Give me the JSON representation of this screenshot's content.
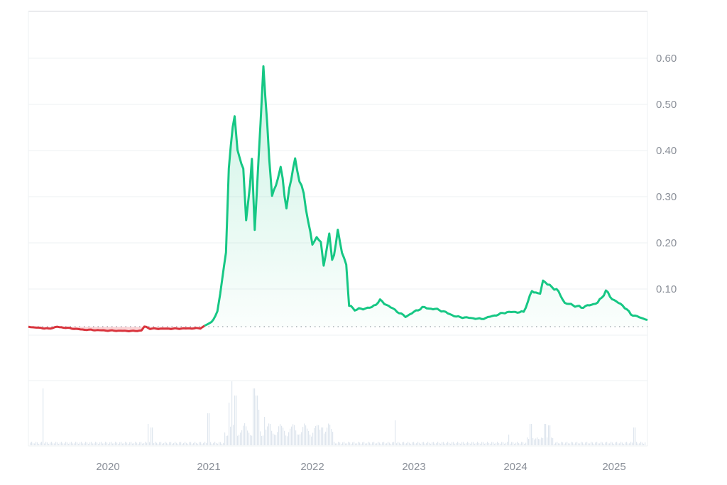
{
  "chart_data": {
    "type": "line",
    "title": "",
    "xlabel": "",
    "ylabel": "",
    "ylim": [
      0,
      0.7
    ],
    "y_ticks": [
      "0.10",
      "0.20",
      "0.30",
      "0.40",
      "0.50",
      "0.60"
    ],
    "x_ticks": [
      "2020",
      "2021",
      "2022",
      "2023",
      "2024",
      "2025"
    ],
    "grid": true,
    "legend": "none",
    "baseline_value": 0.018,
    "colors": {
      "above_baseline": "#16c784",
      "below_baseline": "#ea3943",
      "volume": "#dfe6ee",
      "grid": "#eef0f3",
      "tick_text": "#8a8f98"
    },
    "series": [
      {
        "name": "Price",
        "points": [
          [
            "2019-04",
            0.018
          ],
          [
            "2019-06",
            0.014
          ],
          [
            "2019-07",
            0.018
          ],
          [
            "2019-10",
            0.012
          ],
          [
            "2020-01",
            0.01
          ],
          [
            "2020-04",
            0.009
          ],
          [
            "2020-05",
            0.01
          ],
          [
            "2020-05",
            0.019
          ],
          [
            "2020-06",
            0.014
          ],
          [
            "2020-09",
            0.014
          ],
          [
            "2020-12",
            0.015
          ],
          [
            "2021-01",
            0.025
          ],
          [
            "2021-01",
            0.028
          ],
          [
            "2021-02",
            0.05
          ],
          [
            "2021-02",
            0.09
          ],
          [
            "2021-03",
            0.18
          ],
          [
            "2021-03",
            0.37
          ],
          [
            "2021-04",
            0.48
          ],
          [
            "2021-04",
            0.4
          ],
          [
            "2021-05",
            0.36
          ],
          [
            "2021-05",
            0.24
          ],
          [
            "2021-06",
            0.38
          ],
          [
            "2021-06",
            0.23
          ],
          [
            "2021-07",
            0.46
          ],
          [
            "2021-07",
            0.59
          ],
          [
            "2021-08",
            0.38
          ],
          [
            "2021-08",
            0.3
          ],
          [
            "2021-09",
            0.34
          ],
          [
            "2021-09",
            0.36
          ],
          [
            "2021-10",
            0.28
          ],
          [
            "2021-10",
            0.32
          ],
          [
            "2021-11",
            0.38
          ],
          [
            "2021-12",
            0.3
          ],
          [
            "2022-01",
            0.2
          ],
          [
            "2022-02",
            0.21
          ],
          [
            "2022-02",
            0.15
          ],
          [
            "2022-03",
            0.22
          ],
          [
            "2022-03",
            0.16
          ],
          [
            "2022-04",
            0.22
          ],
          [
            "2022-05",
            0.15
          ],
          [
            "2022-05",
            0.065
          ],
          [
            "2022-06",
            0.055
          ],
          [
            "2022-08",
            0.06
          ],
          [
            "2022-09",
            0.075
          ],
          [
            "2022-12",
            0.04
          ],
          [
            "2023-02",
            0.06
          ],
          [
            "2023-04",
            0.055
          ],
          [
            "2023-06",
            0.04
          ],
          [
            "2023-09",
            0.035
          ],
          [
            "2023-12",
            0.05
          ],
          [
            "2024-02",
            0.05
          ],
          [
            "2024-03",
            0.095
          ],
          [
            "2024-04",
            0.09
          ],
          [
            "2024-04",
            0.115
          ],
          [
            "2024-06",
            0.1
          ],
          [
            "2024-07",
            0.07
          ],
          [
            "2024-09",
            0.06
          ],
          [
            "2024-11",
            0.07
          ],
          [
            "2024-12",
            0.095
          ],
          [
            "2025-01",
            0.075
          ],
          [
            "2025-02",
            0.065
          ],
          [
            "2025-03",
            0.045
          ],
          [
            "2025-04",
            0.033
          ]
        ]
      },
      {
        "name": "Volume",
        "note": "relative volume bars in lower panel (no axis labels)"
      }
    ]
  }
}
